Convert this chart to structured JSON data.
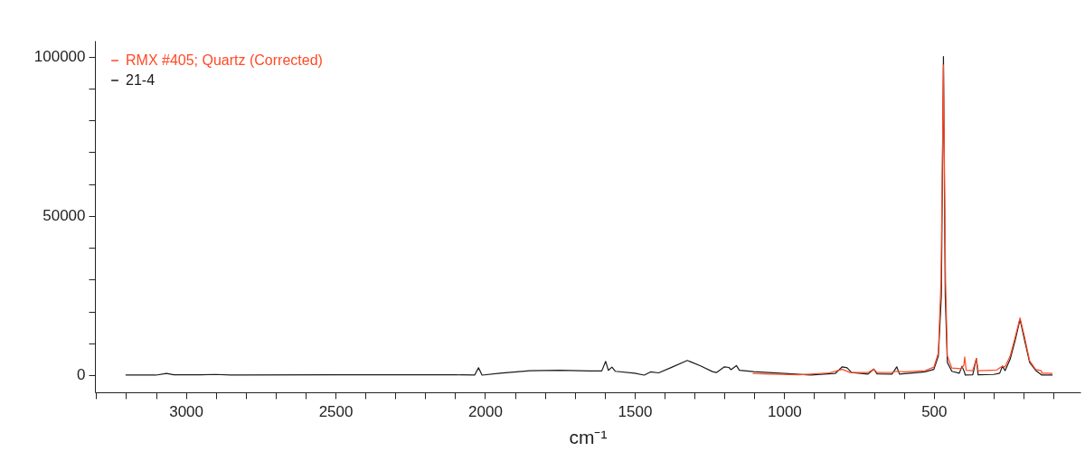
{
  "chart_data": {
    "type": "line",
    "xlabel": "cm⁻¹",
    "xlim": [
      3304,
      10
    ],
    "ylim": [
      -5400,
      105000
    ],
    "xticks": [
      {
        "value": 3300,
        "label": null
      },
      {
        "value": 3200,
        "label": null
      },
      {
        "value": 3100,
        "label": null
      },
      3000,
      {
        "value": 2900,
        "label": null
      },
      {
        "value": 2800,
        "label": null
      },
      {
        "value": 2700,
        "label": null
      },
      {
        "value": 2600,
        "label": null
      },
      2500,
      {
        "value": 2400,
        "label": null
      },
      {
        "value": 2300,
        "label": null
      },
      {
        "value": 2200,
        "label": null
      },
      {
        "value": 2100,
        "label": null
      },
      2000,
      {
        "value": 1900,
        "label": null
      },
      {
        "value": 1800,
        "label": null
      },
      {
        "value": 1700,
        "label": null
      },
      {
        "value": 1600,
        "label": null
      },
      1500,
      {
        "value": 1400,
        "label": null
      },
      {
        "value": 1300,
        "label": null
      },
      {
        "value": 1200,
        "label": null
      },
      {
        "value": 1100,
        "label": null
      },
      1000,
      {
        "value": 900,
        "label": null
      },
      {
        "value": 800,
        "label": null
      },
      {
        "value": 700,
        "label": null
      },
      {
        "value": 600,
        "label": null
      },
      500,
      {
        "value": 400,
        "label": null
      },
      {
        "value": 300,
        "label": null
      },
      {
        "value": 200,
        "label": null
      },
      {
        "value": 100,
        "label": null
      }
    ],
    "yticks": [
      0,
      {
        "value": 10000,
        "label": null
      },
      {
        "value": 20000,
        "label": null
      },
      {
        "value": 30000,
        "label": null
      },
      {
        "value": 40000,
        "label": null
      },
      50000,
      {
        "value": 60000,
        "label": null
      },
      {
        "value": 70000,
        "label": null
      },
      {
        "value": 80000,
        "label": null
      },
      {
        "value": 90000,
        "label": null
      },
      100000
    ],
    "grid": false,
    "legend": "top left",
    "marker": "none",
    "line_style": "solid",
    "series": [
      {
        "name": "RMX #405; Quartz (Corrected)",
        "color": "#ff4a26",
        "x": [
          1104,
          1050,
          950,
          850,
          806,
          780,
          720,
          701,
          690,
          640,
          624,
          600,
          530,
          500,
          485,
          476,
          468,
          461,
          455,
          440,
          410,
          400,
          397,
          392,
          370,
          358,
          352,
          290,
          271,
          262,
          245,
          228,
          212,
          197,
          180,
          160,
          141,
          139,
          120,
          105
        ],
        "values": [
          500,
          300,
          100,
          700,
          1800,
          800,
          800,
          1900,
          800,
          900,
          1200,
          1000,
          1400,
          2500,
          7000,
          30000,
          97400,
          30000,
          6000,
          2200,
          2000,
          3000,
          5700,
          1500,
          1400,
          5200,
          1400,
          1600,
          2800,
          2600,
          6000,
          12000,
          18000,
          12000,
          4500,
          1800,
          1400,
          600,
          600,
          500
        ]
      },
      {
        "name": "21-4",
        "color": "#1a1a1a",
        "x": [
          3200,
          3100,
          3065,
          3040,
          2950,
          2900,
          2850,
          2500,
          2100,
          2035,
          2022,
          2010,
          1950,
          1850,
          1750,
          1650,
          1610,
          1597,
          1588,
          1576,
          1565,
          1500,
          1468,
          1447,
          1420,
          1380,
          1324,
          1280,
          1240,
          1227,
          1200,
          1185,
          1178,
          1160,
          1150,
          1102,
          1000,
          912,
          830,
          806,
          790,
          775,
          720,
          701,
          690,
          640,
          624,
          615,
          530,
          500,
          485,
          475,
          468,
          462,
          455,
          440,
          415,
          406,
          398,
          395,
          370,
          358,
          352,
          300,
          280,
          271,
          262,
          245,
          228,
          212,
          197,
          180,
          160,
          139,
          105
        ],
        "values": [
          0,
          0,
          500,
          100,
          100,
          200,
          0,
          100,
          100,
          0,
          2300,
          0,
          600,
          1400,
          1500,
          1300,
          1300,
          4300,
          1500,
          2500,
          1200,
          600,
          0,
          1000,
          700,
          2300,
          4600,
          2900,
          1100,
          800,
          2600,
          2400,
          1700,
          3000,
          1500,
          1100,
          500,
          0,
          500,
          2600,
          2300,
          800,
          300,
          1900,
          400,
          300,
          2600,
          300,
          1000,
          1800,
          6000,
          25000,
          100000,
          25000,
          4000,
          1200,
          600,
          2800,
          1000,
          0,
          100,
          5200,
          100,
          200,
          600,
          2800,
          1400,
          5000,
          11000,
          17500,
          11000,
          4000,
          1500,
          0,
          0
        ]
      }
    ]
  }
}
